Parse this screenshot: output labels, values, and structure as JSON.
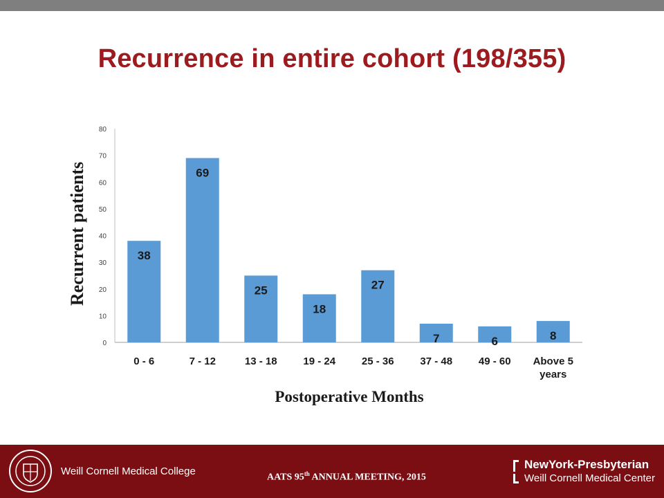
{
  "slide": {
    "title": "Recurrence in entire cohort (198/355)"
  },
  "footer": {
    "institution": "Weill Cornell Medical College",
    "meeting_prefix": "AATS 95",
    "meeting_sup": "th",
    "meeting_suffix": " ANNUAL MEETING, 2015",
    "hospital_name": "NewYork-Presbyterian",
    "hospital_sub": "Weill Cornell Medical Center"
  },
  "colors": {
    "title": "#9b1b1e",
    "bar": "#5b9bd5",
    "footer": "#7a0e12"
  },
  "chart_data": {
    "type": "bar",
    "title": "",
    "xlabel": "Postoperative Months",
    "ylabel": "Recurrent patients",
    "categories": [
      "0 - 6",
      "7 - 12",
      "13 - 18",
      "19 - 24",
      "25 - 36",
      "37 - 48",
      "49 - 60",
      "Above 5 years"
    ],
    "values": [
      38,
      69,
      25,
      18,
      27,
      7,
      6,
      8
    ],
    "ylim": [
      0,
      80
    ],
    "yticks": [
      0,
      10,
      20,
      30,
      40,
      50,
      60,
      70,
      80
    ],
    "grid": false,
    "data_labels": true
  }
}
